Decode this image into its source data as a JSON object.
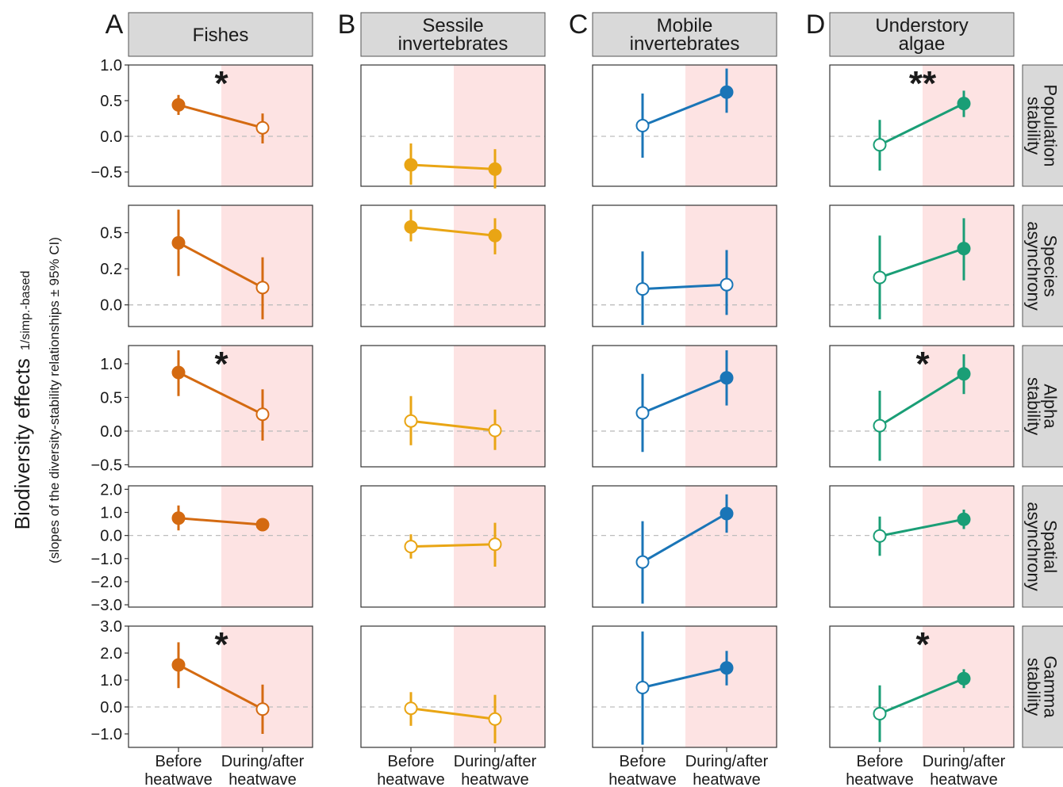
{
  "figure": {
    "ylabel": "Biodiversity effects",
    "ylabel_sub": "1/simp.-based",
    "ylabel2": "(slopes of the diversity-stability relationships ± 95% CI)",
    "x_categories": [
      "Before|heatwave",
      "During/after|heatwave"
    ],
    "background": "#ffffff",
    "heatwave_shade_color": "#fde3e3",
    "strip_color": "#d9d9d9",
    "filled_marker_meaning": "P<0.05",
    "open_marker_meaning": "not significant"
  },
  "chart_data": {
    "type": "scatter",
    "title": "",
    "x": [
      "Before heatwave",
      "During/after heatwave"
    ],
    "panel_letters": [
      "A",
      "B",
      "C",
      "D"
    ],
    "taxa": [
      {
        "letter": "A",
        "name": "Fishes",
        "color": "#d46a11"
      },
      {
        "letter": "B",
        "name": "Sessile invertebrates",
        "color": "#e9a514"
      },
      {
        "letter": "C",
        "name": "Mobile invertebrates",
        "color": "#1a75b7"
      },
      {
        "letter": "D",
        "name": "Understory algae",
        "color": "#1a9e76"
      }
    ],
    "metrics": [
      {
        "name": "Population stability",
        "ylim": [
          -0.7,
          1.0
        ],
        "ticks": [
          1.0,
          0.5,
          0.0,
          -0.5
        ],
        "tick_labels": [
          "1.0",
          "0.5",
          "0.0",
          "−0.5"
        ]
      },
      {
        "name": "Species asynchrony",
        "ylim": [
          -0.15,
          0.69
        ],
        "ticks": [
          0.5,
          0.25,
          0.0
        ],
        "tick_labels": [
          "0.5",
          "0.2",
          "0.0"
        ]
      },
      {
        "name": "Alpha stability",
        "ylim": [
          -0.53,
          1.27
        ],
        "ticks": [
          1.0,
          0.5,
          0.0,
          -0.5
        ],
        "tick_labels": [
          "1.0",
          "0.5",
          "0.0",
          "−0.5"
        ]
      },
      {
        "name": "Spatial asynchrony",
        "ylim": [
          -3.1,
          2.15
        ],
        "ticks": [
          2.0,
          1.0,
          0.0,
          -1.0,
          -2.0,
          -3.0
        ],
        "tick_labels": [
          "2.0",
          "1.0",
          "0.0",
          "−1.0",
          "−2.0",
          "−3.0"
        ]
      },
      {
        "name": "Gamma stability",
        "ylim": [
          -1.5,
          3.0
        ],
        "ticks": [
          3.0,
          2.0,
          1.0,
          0.0,
          -1.0
        ],
        "tick_labels": [
          "3.0",
          "2.0",
          "1.0",
          "0.0",
          "−1.0"
        ]
      }
    ],
    "cells": [
      [
        {
          "before": {
            "y": 0.44,
            "lo": 0.3,
            "hi": 0.58,
            "filled": true
          },
          "after": {
            "y": 0.12,
            "lo": -0.1,
            "hi": 0.32,
            "filled": false
          },
          "sig": "*"
        },
        {
          "before": {
            "y": -0.4,
            "lo": -0.68,
            "hi": -0.1,
            "filled": true
          },
          "after": {
            "y": -0.46,
            "lo": -0.73,
            "hi": -0.18,
            "filled": true
          },
          "sig": ""
        },
        {
          "before": {
            "y": 0.15,
            "lo": -0.3,
            "hi": 0.6,
            "filled": false
          },
          "after": {
            "y": 0.62,
            "lo": 0.33,
            "hi": 0.95,
            "filled": true
          },
          "sig": ""
        },
        {
          "before": {
            "y": -0.12,
            "lo": -0.48,
            "hi": 0.23,
            "filled": false
          },
          "after": {
            "y": 0.46,
            "lo": 0.27,
            "hi": 0.64,
            "filled": true
          },
          "sig": "**"
        }
      ],
      [
        {
          "before": {
            "y": 0.43,
            "lo": 0.2,
            "hi": 0.66,
            "filled": true
          },
          "after": {
            "y": 0.12,
            "lo": -0.1,
            "hi": 0.33,
            "filled": false
          },
          "sig": ""
        },
        {
          "before": {
            "y": 0.54,
            "lo": 0.44,
            "hi": 0.66,
            "filled": true
          },
          "after": {
            "y": 0.48,
            "lo": 0.35,
            "hi": 0.6,
            "filled": true
          },
          "sig": ""
        },
        {
          "before": {
            "y": 0.11,
            "lo": -0.14,
            "hi": 0.37,
            "filled": false
          },
          "after": {
            "y": 0.14,
            "lo": -0.07,
            "hi": 0.38,
            "filled": false
          },
          "sig": ""
        },
        {
          "before": {
            "y": 0.19,
            "lo": -0.1,
            "hi": 0.48,
            "filled": false
          },
          "after": {
            "y": 0.39,
            "lo": 0.17,
            "hi": 0.6,
            "filled": true
          },
          "sig": ""
        }
      ],
      [
        {
          "before": {
            "y": 0.87,
            "lo": 0.52,
            "hi": 1.2,
            "filled": true
          },
          "after": {
            "y": 0.25,
            "lo": -0.14,
            "hi": 0.62,
            "filled": false
          },
          "sig": "*"
        },
        {
          "before": {
            "y": 0.15,
            "lo": -0.21,
            "hi": 0.52,
            "filled": false
          },
          "after": {
            "y": 0.01,
            "lo": -0.28,
            "hi": 0.32,
            "filled": false
          },
          "sig": ""
        },
        {
          "before": {
            "y": 0.27,
            "lo": -0.31,
            "hi": 0.85,
            "filled": false
          },
          "after": {
            "y": 0.79,
            "lo": 0.38,
            "hi": 1.2,
            "filled": true
          },
          "sig": ""
        },
        {
          "before": {
            "y": 0.08,
            "lo": -0.44,
            "hi": 0.6,
            "filled": false
          },
          "after": {
            "y": 0.85,
            "lo": 0.55,
            "hi": 1.14,
            "filled": true
          },
          "sig": "*"
        }
      ],
      [
        {
          "before": {
            "y": 0.75,
            "lo": 0.22,
            "hi": 1.3,
            "filled": true
          },
          "after": {
            "y": 0.47,
            "lo": 0.47,
            "hi": 0.47,
            "filled": true
          },
          "sig": ""
        },
        {
          "before": {
            "y": -0.48,
            "lo": -1.0,
            "hi": 0.05,
            "filled": false
          },
          "after": {
            "y": -0.38,
            "lo": -1.35,
            "hi": 0.55,
            "filled": false
          },
          "sig": ""
        },
        {
          "before": {
            "y": -1.15,
            "lo": -2.95,
            "hi": 0.62,
            "filled": false
          },
          "after": {
            "y": 0.95,
            "lo": 0.12,
            "hi": 1.78,
            "filled": true
          },
          "sig": ""
        },
        {
          "before": {
            "y": -0.02,
            "lo": -0.88,
            "hi": 0.82,
            "filled": false
          },
          "after": {
            "y": 0.7,
            "lo": 0.28,
            "hi": 1.12,
            "filled": true
          },
          "sig": ""
        }
      ],
      [
        {
          "before": {
            "y": 1.56,
            "lo": 0.7,
            "hi": 2.4,
            "filled": true
          },
          "after": {
            "y": -0.08,
            "lo": -1.0,
            "hi": 0.83,
            "filled": false
          },
          "sig": "*"
        },
        {
          "before": {
            "y": -0.05,
            "lo": -0.7,
            "hi": 0.55,
            "filled": false
          },
          "after": {
            "y": -0.45,
            "lo": -1.35,
            "hi": 0.45,
            "filled": false
          },
          "sig": ""
        },
        {
          "before": {
            "y": 0.72,
            "lo": -1.4,
            "hi": 2.8,
            "filled": false
          },
          "after": {
            "y": 1.45,
            "lo": 0.8,
            "hi": 2.08,
            "filled": true
          },
          "sig": ""
        },
        {
          "before": {
            "y": -0.25,
            "lo": -1.3,
            "hi": 0.8,
            "filled": false
          },
          "after": {
            "y": 1.05,
            "lo": 0.7,
            "hi": 1.4,
            "filled": true
          },
          "sig": "*"
        }
      ]
    ]
  }
}
